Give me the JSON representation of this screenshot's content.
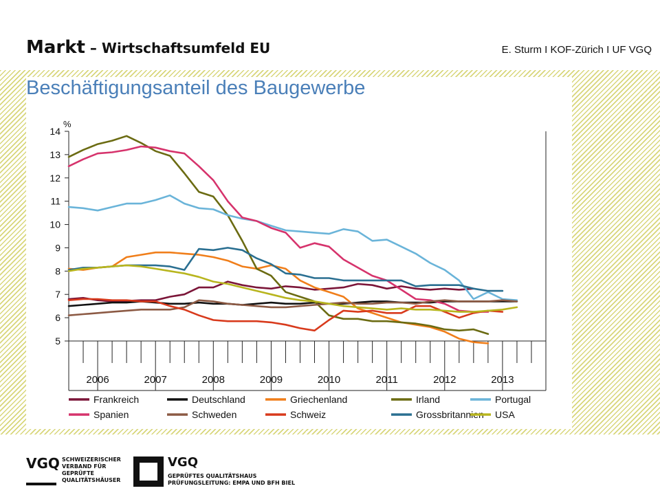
{
  "header": {
    "title": "Markt",
    "subtitle": " – Wirtschaftsumfeld  EU",
    "author": "E. Sturm I KOF-Zürich I UF VGQ"
  },
  "chart_data": {
    "type": "line",
    "title": "Beschäftigungsanteil des Baugewerbe",
    "ylabel": "%",
    "ylim": [
      5,
      14
    ],
    "yticks": [
      5,
      6,
      7,
      8,
      9,
      10,
      11,
      12,
      13,
      14
    ],
    "xlim": [
      2005.5,
      2013.75
    ],
    "year_labels": [
      "2006",
      "2007",
      "2008",
      "2009",
      "2010",
      "2011",
      "2012",
      "2013"
    ],
    "grid": false,
    "legend_position": "bottom",
    "series": [
      {
        "name": "Frankreich",
        "color": "#7b1538",
        "x": [
          2005.5,
          2005.75,
          2006,
          2006.25,
          2006.5,
          2006.75,
          2007,
          2007.25,
          2007.5,
          2007.75,
          2008,
          2008.25,
          2008.5,
          2008.75,
          2009,
          2009.25,
          2009.5,
          2009.75,
          2010,
          2010.25,
          2010.5,
          2010.75,
          2011,
          2011.25,
          2011.5,
          2011.75,
          2012,
          2012.25,
          2012.5
        ],
        "y": [
          6.8,
          6.85,
          6.75,
          6.7,
          6.72,
          6.75,
          6.75,
          6.9,
          7.0,
          7.3,
          7.3,
          7.55,
          7.4,
          7.3,
          7.25,
          7.35,
          7.3,
          7.2,
          7.25,
          7.3,
          7.45,
          7.4,
          7.25,
          7.35,
          7.25,
          7.2,
          7.25,
          7.2,
          7.25
        ]
      },
      {
        "name": "Deutschland",
        "color": "#111111",
        "x": [
          2005.5,
          2005.75,
          2006,
          2006.25,
          2006.5,
          2006.75,
          2007,
          2007.25,
          2007.5,
          2007.75,
          2008,
          2008.25,
          2008.5,
          2008.75,
          2009,
          2009.25,
          2009.5,
          2009.75,
          2010,
          2010.25,
          2010.5,
          2010.75,
          2011,
          2011.25,
          2011.5,
          2011.75,
          2012,
          2012.25,
          2012.5,
          2012.75,
          2013,
          2013.25
        ],
        "y": [
          6.5,
          6.55,
          6.6,
          6.65,
          6.65,
          6.7,
          6.65,
          6.6,
          6.6,
          6.65,
          6.6,
          6.6,
          6.55,
          6.6,
          6.65,
          6.6,
          6.6,
          6.65,
          6.6,
          6.6,
          6.65,
          6.7,
          6.7,
          6.65,
          6.65,
          6.65,
          6.7,
          6.7,
          6.7,
          6.7,
          6.7,
          6.7
        ]
      },
      {
        "name": "Griechenland",
        "color": "#f07e1a",
        "x": [
          2005.5,
          2005.75,
          2006,
          2006.25,
          2006.5,
          2006.75,
          2007,
          2007.25,
          2007.5,
          2007.75,
          2008,
          2008.25,
          2008.5,
          2008.75,
          2009,
          2009.25,
          2009.5,
          2009.75,
          2010,
          2010.25,
          2010.5,
          2010.75,
          2011,
          2011.25,
          2011.5,
          2011.75,
          2012,
          2012.25,
          2012.5,
          2012.75
        ],
        "y": [
          8.1,
          8.05,
          8.15,
          8.2,
          8.6,
          8.7,
          8.8,
          8.8,
          8.75,
          8.7,
          8.6,
          8.45,
          8.2,
          8.1,
          8.25,
          8.1,
          7.6,
          7.3,
          7.1,
          6.9,
          6.4,
          6.2,
          6.0,
          5.8,
          5.7,
          5.6,
          5.4,
          5.1,
          4.95,
          4.9
        ]
      },
      {
        "name": "Irland",
        "color": "#6b6b12",
        "x": [
          2005.5,
          2005.75,
          2006,
          2006.25,
          2006.5,
          2006.75,
          2007,
          2007.25,
          2007.5,
          2007.75,
          2008,
          2008.25,
          2008.5,
          2008.75,
          2009,
          2009.25,
          2009.5,
          2009.75,
          2010,
          2010.25,
          2010.5,
          2010.75,
          2011,
          2011.25,
          2011.5,
          2011.75,
          2012,
          2012.25,
          2012.5,
          2012.75
        ],
        "y": [
          12.9,
          13.2,
          13.45,
          13.6,
          13.8,
          13.5,
          13.15,
          12.95,
          12.2,
          11.4,
          11.2,
          10.4,
          9.3,
          8.1,
          7.8,
          7.1,
          6.9,
          6.7,
          6.1,
          5.95,
          5.95,
          5.85,
          5.85,
          5.8,
          5.75,
          5.65,
          5.5,
          5.45,
          5.5,
          5.3
        ]
      },
      {
        "name": "Portugal",
        "color": "#6ab4d9",
        "x": [
          2005.5,
          2005.75,
          2006,
          2006.25,
          2006.5,
          2006.75,
          2007,
          2007.25,
          2007.5,
          2007.75,
          2008,
          2008.25,
          2008.5,
          2008.75,
          2009,
          2009.25,
          2009.5,
          2009.75,
          2010,
          2010.25,
          2010.5,
          2010.75,
          2011,
          2011.25,
          2011.5,
          2011.75,
          2012,
          2012.25,
          2012.5,
          2012.75,
          2013,
          2013.25
        ],
        "y": [
          10.75,
          10.7,
          10.6,
          10.75,
          10.9,
          10.9,
          11.05,
          11.25,
          10.9,
          10.7,
          10.65,
          10.4,
          10.25,
          10.15,
          9.95,
          9.75,
          9.7,
          9.65,
          9.6,
          9.8,
          9.7,
          9.3,
          9.35,
          9.05,
          8.75,
          8.35,
          8.05,
          7.6,
          6.8,
          7.1,
          6.8,
          6.75
        ]
      },
      {
        "name": "Spanien",
        "color": "#d6336c",
        "x": [
          2005.5,
          2005.75,
          2006,
          2006.25,
          2006.5,
          2006.75,
          2007,
          2007.25,
          2007.5,
          2007.75,
          2008,
          2008.25,
          2008.5,
          2008.75,
          2009,
          2009.25,
          2009.5,
          2009.75,
          2010,
          2010.25,
          2010.5,
          2010.75,
          2011,
          2011.25,
          2011.5,
          2011.75,
          2012,
          2012.25,
          2012.5,
          2012.75
        ],
        "y": [
          12.5,
          12.8,
          13.05,
          13.1,
          13.2,
          13.35,
          13.3,
          13.15,
          13.05,
          12.5,
          11.9,
          11.0,
          10.3,
          10.15,
          9.85,
          9.65,
          9.0,
          9.2,
          9.05,
          8.5,
          8.15,
          7.8,
          7.6,
          7.2,
          6.8,
          6.75,
          6.6,
          6.3,
          6.25,
          6.25
        ]
      },
      {
        "name": "Schweden",
        "color": "#8c5a44",
        "x": [
          2005.5,
          2005.75,
          2006,
          2006.25,
          2006.5,
          2006.75,
          2007,
          2007.25,
          2007.5,
          2007.75,
          2008,
          2008.25,
          2008.5,
          2008.75,
          2009,
          2009.25,
          2009.5,
          2009.75,
          2010,
          2010.25,
          2010.5,
          2010.75,
          2011,
          2011.25,
          2011.5,
          2011.75,
          2012,
          2012.25,
          2012.5,
          2012.75,
          2013,
          2013.25
        ],
        "y": [
          6.1,
          6.15,
          6.2,
          6.25,
          6.3,
          6.35,
          6.35,
          6.35,
          6.45,
          6.75,
          6.7,
          6.6,
          6.55,
          6.5,
          6.45,
          6.45,
          6.5,
          6.55,
          6.6,
          6.65,
          6.6,
          6.6,
          6.65,
          6.65,
          6.6,
          6.7,
          6.75,
          6.7,
          6.7,
          6.7,
          6.75,
          6.7
        ]
      },
      {
        "name": "Schweiz",
        "color": "#d83a1c",
        "x": [
          2005.5,
          2005.75,
          2006,
          2006.25,
          2006.5,
          2006.75,
          2007,
          2007.25,
          2007.5,
          2007.75,
          2008,
          2008.25,
          2008.5,
          2008.75,
          2009,
          2009.25,
          2009.5,
          2009.75,
          2010,
          2010.25,
          2010.5,
          2010.75,
          2011,
          2011.25,
          2011.5,
          2011.75,
          2012,
          2012.25,
          2012.5,
          2012.75,
          2013
        ],
        "y": [
          6.75,
          6.8,
          6.8,
          6.75,
          6.75,
          6.7,
          6.7,
          6.5,
          6.35,
          6.1,
          5.9,
          5.85,
          5.85,
          5.85,
          5.8,
          5.7,
          5.55,
          5.45,
          5.9,
          6.3,
          6.25,
          6.3,
          6.2,
          6.2,
          6.5,
          6.5,
          6.25,
          6.0,
          6.2,
          6.3,
          6.25
        ]
      },
      {
        "name": "Grossbritannien",
        "color": "#2a6f91",
        "x": [
          2005.5,
          2005.75,
          2006,
          2006.25,
          2006.5,
          2006.75,
          2007,
          2007.25,
          2007.5,
          2007.75,
          2008,
          2008.25,
          2008.5,
          2008.75,
          2009,
          2009.25,
          2009.5,
          2009.75,
          2010,
          2010.25,
          2010.5,
          2010.75,
          2011,
          2011.25,
          2011.5,
          2011.75,
          2012,
          2012.25,
          2012.5,
          2012.75,
          2013
        ],
        "y": [
          8.05,
          8.15,
          8.15,
          8.2,
          8.25,
          8.25,
          8.25,
          8.2,
          8.05,
          8.95,
          8.9,
          9.0,
          8.9,
          8.55,
          8.3,
          7.9,
          7.85,
          7.7,
          7.7,
          7.6,
          7.6,
          7.6,
          7.6,
          7.6,
          7.35,
          7.4,
          7.4,
          7.4,
          7.25,
          7.15,
          7.15
        ]
      },
      {
        "name": "USA",
        "color": "#b8b51e",
        "x": [
          2005.5,
          2005.75,
          2006,
          2006.25,
          2006.5,
          2006.75,
          2007,
          2007.25,
          2007.5,
          2007.75,
          2008,
          2008.25,
          2008.5,
          2008.75,
          2009,
          2009.25,
          2009.5,
          2009.75,
          2010,
          2010.25,
          2010.5,
          2010.75,
          2011,
          2011.25,
          2011.5,
          2011.75,
          2012,
          2012.25,
          2012.5,
          2012.75,
          2013,
          2013.25
        ],
        "y": [
          8.0,
          8.1,
          8.15,
          8.2,
          8.25,
          8.2,
          8.1,
          8.0,
          7.9,
          7.75,
          7.55,
          7.45,
          7.3,
          7.15,
          7.0,
          6.85,
          6.75,
          6.7,
          6.6,
          6.5,
          6.45,
          6.4,
          6.35,
          6.4,
          6.35,
          6.35,
          6.3,
          6.25,
          6.25,
          6.3,
          6.35,
          6.45
        ]
      }
    ]
  },
  "footer": {
    "logo1_title": "VGQ",
    "logo1_lines": [
      "SCHWEIZERISCHER",
      "VERBAND FÜR",
      "GEPRÜFTE",
      "QUALITÄTSHÄUSER"
    ],
    "logo2_title": "VGQ",
    "logo2_lines": [
      "GEPRÜFTES QUALITÄTSHAUS",
      "PRÜFUNGSLEITUNG: EMPA UND BFH BIEL"
    ]
  }
}
